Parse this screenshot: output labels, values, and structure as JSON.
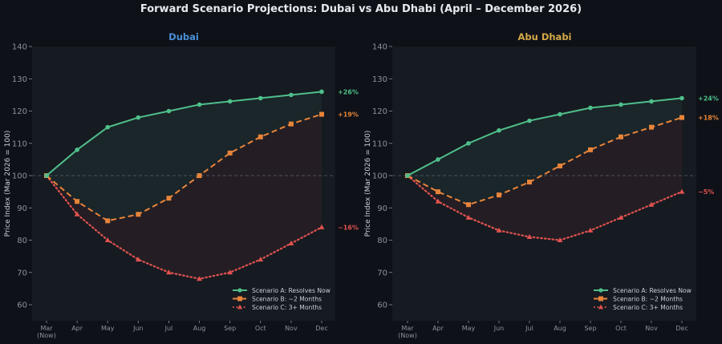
{
  "chart_data": {
    "type": "line",
    "title": "Forward Scenario Projections: Dubai vs Abu Dhabi (April – December 2026)",
    "panels": [
      {
        "title": "Dubai",
        "title_color": "#4a90d9",
        "ylabel": "Price Index (Mar 2026 = 100)",
        "xlabel": "",
        "ylim": [
          55,
          140
        ],
        "yticks": [
          60,
          70,
          80,
          90,
          100,
          110,
          120,
          130,
          140
        ],
        "categories": [
          "Mar\n(Now)",
          "Apr",
          "May",
          "Jun",
          "Jul",
          "Aug",
          "Sep",
          "Oct",
          "Nov",
          "Dec"
        ],
        "baseline": 100,
        "grid": false,
        "legend_position": "lower-right",
        "series": [
          {
            "name": "Scenario A: Resolves Now",
            "color": "#4fbf8b",
            "style": "solid",
            "marker": "circle",
            "values": [
              100,
              108,
              115,
              118,
              120,
              122,
              123,
              124,
              125,
              126
            ],
            "end_label": "+26%"
          },
          {
            "name": "Scenario B: ~2 Months",
            "color": "#e8843a",
            "style": "dashed",
            "marker": "square",
            "values": [
              100,
              92,
              86,
              88,
              93,
              100,
              107,
              112,
              116,
              119
            ],
            "end_label": "+19%"
          },
          {
            "name": "Scenario C: 3+ Months",
            "color": "#e0524f",
            "style": "dotted",
            "marker": "triangle",
            "values": [
              100,
              88,
              80,
              74,
              70,
              68,
              70,
              74,
              79,
              84
            ],
            "end_label": "−16%"
          }
        ]
      },
      {
        "title": "Abu Dhabi",
        "title_color": "#d4a847",
        "ylabel": "Price Index (Mar 2026 = 100)",
        "xlabel": "",
        "ylim": [
          55,
          140
        ],
        "yticks": [
          60,
          70,
          80,
          90,
          100,
          110,
          120,
          130,
          140
        ],
        "categories": [
          "Mar\n(Now)",
          "Apr",
          "May",
          "Jun",
          "Jul",
          "Aug",
          "Sep",
          "Oct",
          "Nov",
          "Dec"
        ],
        "baseline": 100,
        "grid": false,
        "legend_position": "lower-right",
        "series": [
          {
            "name": "Scenario A: Resolves Now",
            "color": "#4fbf8b",
            "style": "solid",
            "marker": "circle",
            "values": [
              100,
              105,
              110,
              114,
              117,
              119,
              121,
              122,
              123,
              124
            ],
            "end_label": "+24%"
          },
          {
            "name": "Scenario B: ~2 Months",
            "color": "#e8843a",
            "style": "dashed",
            "marker": "square",
            "values": [
              100,
              95,
              91,
              94,
              98,
              103,
              108,
              112,
              115,
              118
            ],
            "end_label": "+18%"
          },
          {
            "name": "Scenario C: 3+ Months",
            "color": "#e0524f",
            "style": "dotted",
            "marker": "triangle",
            "values": [
              100,
              92,
              87,
              83,
              81,
              80,
              83,
              87,
              91,
              95
            ],
            "end_label": "−5%"
          }
        ]
      }
    ]
  }
}
